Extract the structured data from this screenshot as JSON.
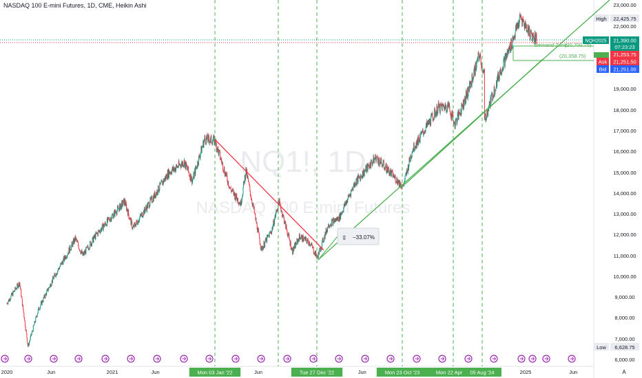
{
  "header": {
    "title": "NASDAQ 100 E-mini Futures, 1D, CME, Heikin Ashi"
  },
  "watermark": {
    "symbol": "NQ1!, 1D",
    "name": "NASDAQ 100 E-mini Futures"
  },
  "price_labels": {
    "high_label": "High",
    "high_value": "22,425.75",
    "symbol_label": "NQH2025",
    "last_value": "21,390.00",
    "countdown": "07:23:23",
    "red_value": "21,253.75",
    "ask_label": "Ask",
    "ask_value": "21,251.50",
    "bid_label": "Bid",
    "bid_value": "21,251.00",
    "low_label": "Low",
    "low_value": "6,628.75"
  },
  "annotations": {
    "demand_zone": "Demand Zone",
    "demand_value": "(20,700.75)",
    "support_value": "(20,358.75)",
    "measure": "−33.07%"
  },
  "date_markers": [
    "Mon 03 Jan '22",
    "Tue 27 Dec '22",
    "Mon 23 Oct '23",
    "Mon 22 Apr '24",
    "05 Aug '24"
  ],
  "colors": {
    "up": "#089981",
    "down": "#f23645",
    "trend": "#4caf50",
    "measure": "#f23645",
    "event": "#9c27b0"
  },
  "icons": {
    "event_marker": "event-marker-icon",
    "settings": "auto-scale-icon"
  },
  "auto_label": "A",
  "chart_data": {
    "type": "candlestick",
    "style": "Heikin Ashi",
    "title": "NASDAQ 100 E-mini Futures, 1D, CME, Heikin Ashi",
    "xlabel": "",
    "ylabel": "",
    "x_ticks": [
      "2020",
      "Jun",
      "2021",
      "Jun",
      "Jun",
      "Jun",
      "2025",
      "Jun"
    ],
    "y_ticks": [
      6000,
      7000,
      8000,
      9000,
      10000,
      11000,
      12000,
      13000,
      14000,
      15000,
      16000,
      17000,
      18000,
      19000,
      22000,
      23000
    ],
    "ylim": [
      5700,
      23200
    ],
    "xlim": [
      2020.0,
      2025.6
    ],
    "path": [
      [
        2020.0,
        8700
      ],
      [
        2020.12,
        9700
      ],
      [
        2020.2,
        6628.75
      ],
      [
        2020.3,
        8400
      ],
      [
        2020.45,
        10000
      ],
      [
        2020.65,
        11800
      ],
      [
        2020.72,
        11000
      ],
      [
        2020.85,
        12000
      ],
      [
        2021.0,
        12900
      ],
      [
        2021.12,
        13600
      ],
      [
        2021.2,
        12300
      ],
      [
        2021.4,
        13800
      ],
      [
        2021.55,
        15000
      ],
      [
        2021.7,
        15500
      ],
      [
        2021.78,
        14600
      ],
      [
        2021.9,
        16600
      ],
      [
        2022.0,
        16500
      ],
      [
        2022.15,
        14200
      ],
      [
        2022.25,
        13500
      ],
      [
        2022.3,
        15100
      ],
      [
        2022.45,
        11300
      ],
      [
        2022.55,
        12200
      ],
      [
        2022.62,
        13600
      ],
      [
        2022.75,
        11200
      ],
      [
        2022.82,
        11900
      ],
      [
        2022.92,
        11600
      ],
      [
        2022.99,
        10900
      ],
      [
        2023.1,
        12500
      ],
      [
        2023.2,
        12800
      ],
      [
        2023.35,
        14500
      ],
      [
        2023.55,
        15700
      ],
      [
        2023.65,
        15200
      ],
      [
        2023.81,
        14300
      ],
      [
        2023.9,
        16100
      ],
      [
        2024.0,
        16900
      ],
      [
        2024.15,
        18100
      ],
      [
        2024.25,
        18200
      ],
      [
        2024.31,
        17300
      ],
      [
        2024.45,
        19000
      ],
      [
        2024.55,
        20600
      ],
      [
        2024.6,
        19600
      ],
      [
        2024.6,
        17500
      ],
      [
        2024.75,
        19800
      ],
      [
        2024.85,
        21000
      ],
      [
        2024.95,
        22400
      ],
      [
        2025.05,
        21600
      ],
      [
        2025.1,
        21390
      ]
    ],
    "markers": [
      {
        "date": "2022-01-03",
        "label": "Mon 03 Jan '22"
      },
      {
        "date": "2022-12-27",
        "label": "Tue 27 Dec '22"
      },
      {
        "date": "2023-10-23",
        "label": "Mon 23 Oct '23"
      },
      {
        "date": "2024-04-22",
        "label": "Mon 22 Apr '24"
      },
      {
        "date": "2024-08-05",
        "label": "05 Aug '24"
      }
    ],
    "levels": {
      "high": 22425.75,
      "last": 21390.0,
      "ask": 21251.5,
      "bid": 21251.0,
      "low": 6628.75,
      "demand_zone": 20700.75,
      "support": 20358.75
    },
    "drawdown_pct": -33.07,
    "grid": false
  }
}
